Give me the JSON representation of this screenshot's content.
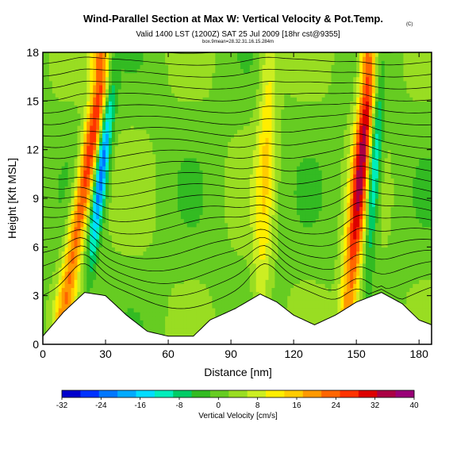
{
  "header": {
    "title": "Wind-Parallel Section at Max W: Vertical Velocity & Pot.Temp.",
    "copyright": "(C)",
    "valid_line": "Valid 1400 LST (1200Z) SAT 25 Jul 2009 [18hr cst@9355]",
    "sub_line": "box.9mean=28.32.31.16.15.284m"
  },
  "chart_data": {
    "type": "heatmap",
    "title": "Wind-Parallel Section at Max W: Vertical Velocity & Pot.Temp.",
    "xlabel": "Distance [nm]",
    "ylabel": "Height [Kft MSL]",
    "xlim": [
      0,
      186
    ],
    "ylim": [
      0,
      18
    ],
    "x_ticks": [
      0,
      30,
      60,
      90,
      120,
      150,
      180
    ],
    "y_ticks": [
      0,
      3,
      6,
      9,
      12,
      15,
      18
    ],
    "grid": false,
    "colorbar": {
      "label": "Vertical Velocity [cm/s]",
      "tick_values": [
        -32,
        -24,
        -16,
        -8,
        0,
        8,
        16,
        24,
        32,
        40
      ],
      "levels": [
        -32,
        -28,
        -24,
        -20,
        -16,
        -12,
        -8,
        -4,
        0,
        4,
        8,
        12,
        16,
        20,
        24,
        28,
        32,
        36,
        40
      ],
      "colors": [
        "#0000cc",
        "#0033ff",
        "#0077ff",
        "#00aaff",
        "#00ddff",
        "#00eebb",
        "#00cc66",
        "#33bb22",
        "#66cc22",
        "#99dd22",
        "#ccee22",
        "#ffee00",
        "#ffcc00",
        "#ff9900",
        "#ff6600",
        "#ff3300",
        "#dd0000",
        "#aa0044",
        "#990077"
      ]
    },
    "updraft_bands": [
      {
        "x_low": 10,
        "x_high": 28,
        "peak_cm_s": 30
      },
      {
        "x_low": 104,
        "x_high": 108,
        "peak_cm_s": 12
      },
      {
        "x_low": 146,
        "x_high": 156,
        "peak_cm_s": 34
      }
    ],
    "downdraft_bands": [
      {
        "x_low": 18,
        "x_high": 30,
        "min_cm_s": -28
      },
      {
        "x_low": 152,
        "x_high": 158,
        "min_cm_s": -22
      }
    ],
    "terrain_kft": [
      {
        "x": 0,
        "h": 0.5
      },
      {
        "x": 10,
        "h": 2.0
      },
      {
        "x": 20,
        "h": 3.2
      },
      {
        "x": 30,
        "h": 3.0
      },
      {
        "x": 40,
        "h": 1.8
      },
      {
        "x": 50,
        "h": 0.8
      },
      {
        "x": 60,
        "h": 0.5
      },
      {
        "x": 72,
        "h": 0.5
      },
      {
        "x": 80,
        "h": 1.5
      },
      {
        "x": 92,
        "h": 2.2
      },
      {
        "x": 104,
        "h": 3.1
      },
      {
        "x": 112,
        "h": 2.6
      },
      {
        "x": 120,
        "h": 1.8
      },
      {
        "x": 130,
        "h": 1.2
      },
      {
        "x": 140,
        "h": 1.8
      },
      {
        "x": 150,
        "h": 2.6
      },
      {
        "x": 162,
        "h": 3.2
      },
      {
        "x": 172,
        "h": 2.5
      },
      {
        "x": 180,
        "h": 1.5
      },
      {
        "x": 186,
        "h": 1.2
      }
    ]
  }
}
